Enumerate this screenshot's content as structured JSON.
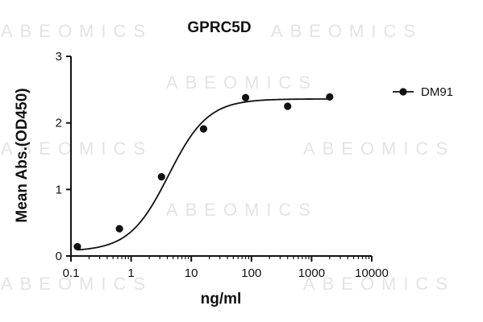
{
  "watermark_text": "ABEOMICS",
  "chart_data": {
    "type": "scatter",
    "title": "GPRC5D",
    "xlabel": "ng/ml",
    "ylabel": "Mean Abs.(OD450)",
    "xscale": "log",
    "xlim": [
      0.1,
      10000
    ],
    "ylim": [
      0,
      3
    ],
    "xticks": [
      0.1,
      1,
      10,
      100,
      1000,
      10000
    ],
    "xtick_labels": [
      "0.1",
      "1",
      "10",
      "100",
      "1000",
      "10000"
    ],
    "yticks": [
      0,
      1,
      2,
      3
    ],
    "ytick_labels": [
      "0",
      "1",
      "2",
      "3"
    ],
    "grid": false,
    "legend_position": "top-right",
    "series": [
      {
        "name": "DM91",
        "color": "#111111",
        "marker": "circle",
        "fit": "sigmoidal",
        "x": [
          0.128,
          0.64,
          3.2,
          16,
          80,
          400,
          2000
        ],
        "y": [
          0.14,
          0.41,
          1.19,
          1.91,
          2.38,
          2.25,
          2.39
        ]
      }
    ]
  }
}
